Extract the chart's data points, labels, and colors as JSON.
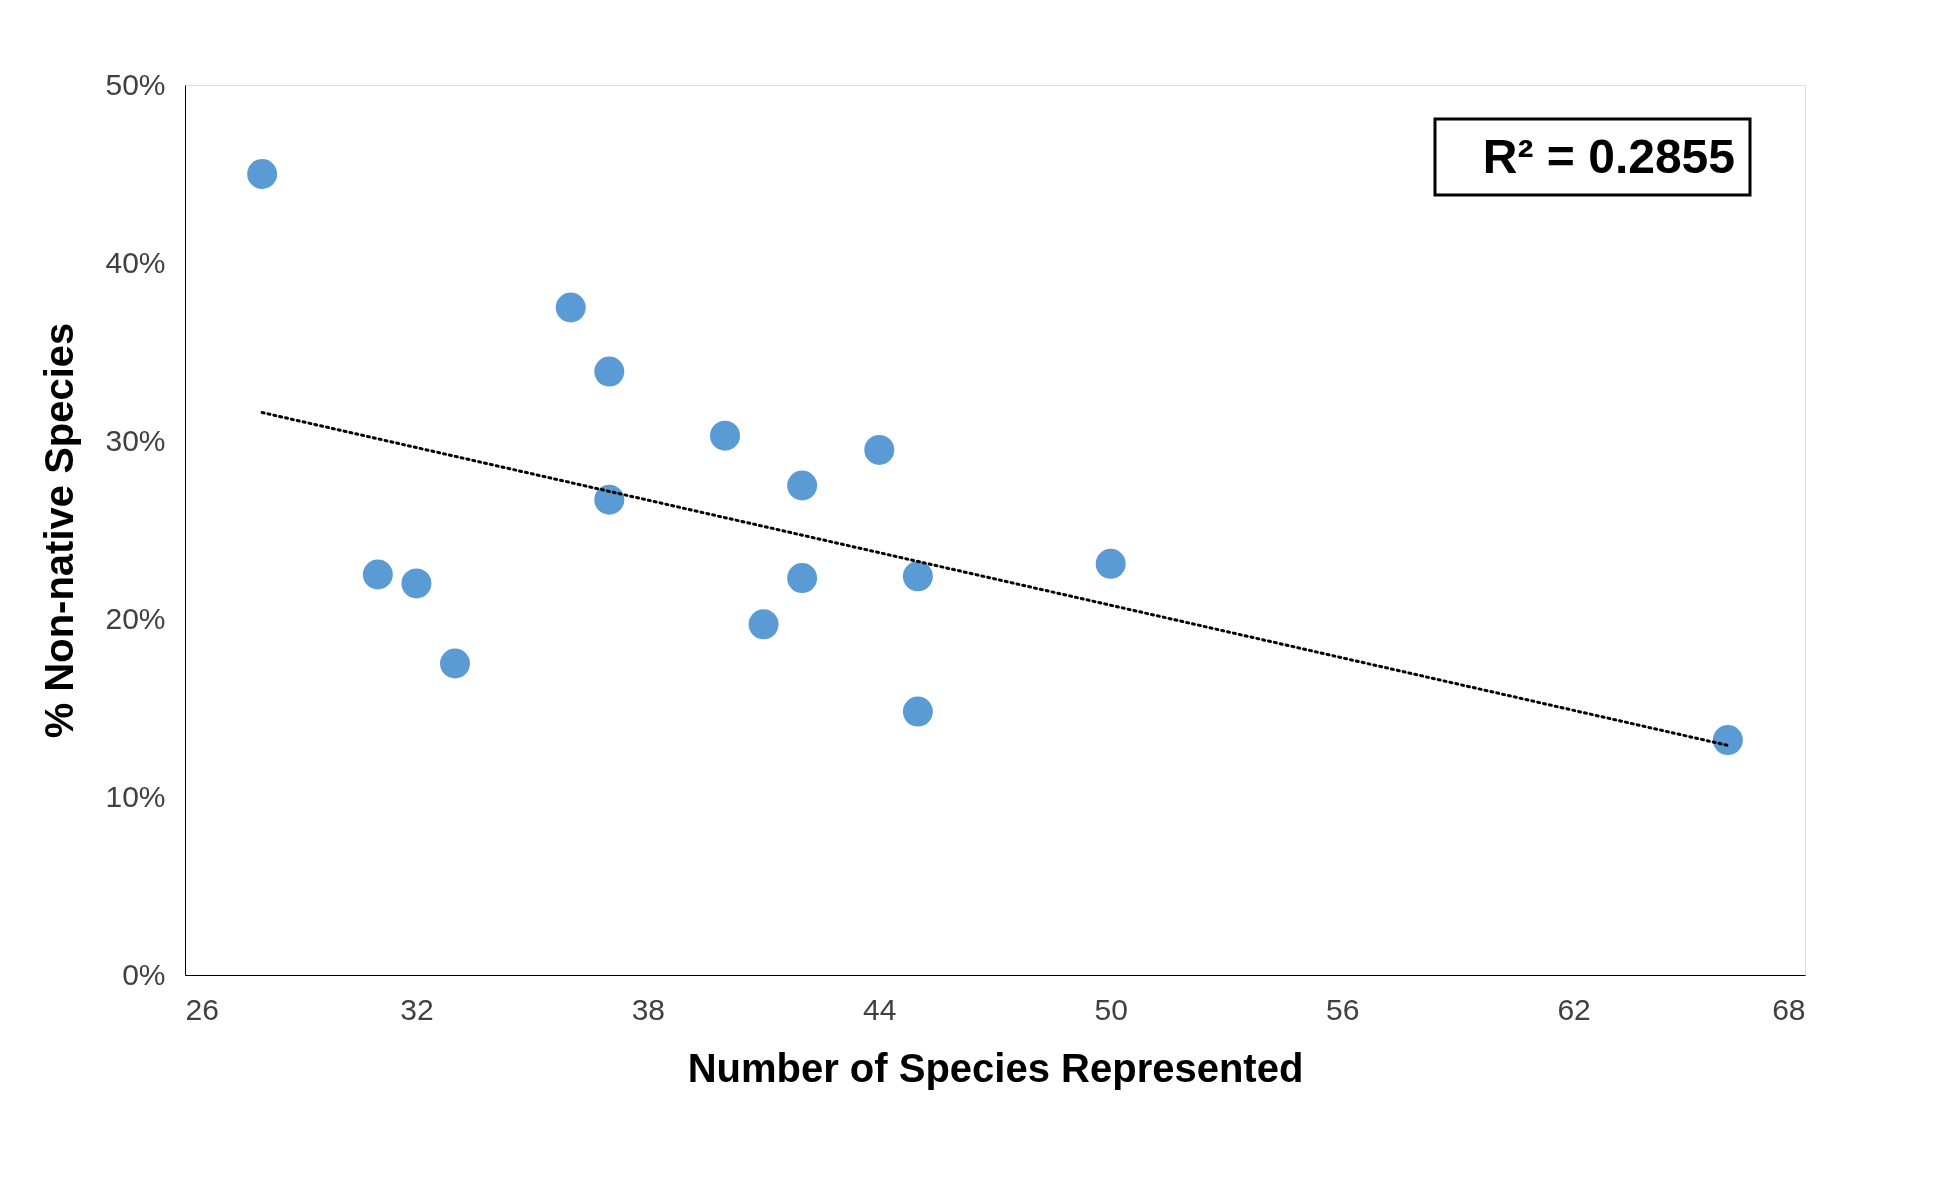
{
  "chart_data": {
    "type": "scatter",
    "xlabel": "Number of Species Represented",
    "ylabel": "% Non-native Species",
    "series": [
      {
        "type": "scatter",
        "color": "#5b9bd5",
        "marker": "circle",
        "x": [
          28,
          31,
          32,
          33,
          36,
          37,
          37,
          40,
          41,
          42,
          42,
          44,
          45,
          45,
          50,
          66
        ],
        "values": [
          45.0,
          22.5,
          22.0,
          17.5,
          37.5,
          33.9,
          26.7,
          30.3,
          19.7,
          27.5,
          22.3,
          29.5,
          22.4,
          14.8,
          23.1,
          13.2
        ]
      },
      {
        "type": "line",
        "color": "#000000",
        "line_style": "dotted",
        "x": [
          28,
          66
        ],
        "values": [
          31.6,
          12.9
        ]
      }
    ],
    "xlim": [
      26,
      68
    ],
    "xticks": [
      26,
      32,
      38,
      44,
      50,
      56,
      62,
      68
    ],
    "ylim": [
      0,
      50
    ],
    "yticks": [
      {
        "value": 0,
        "label": "0%"
      },
      {
        "value": 10,
        "label": "10%"
      },
      {
        "value": 20,
        "label": "20%"
      },
      {
        "value": 30,
        "label": "30%"
      },
      {
        "value": 40,
        "label": "40%"
      },
      {
        "value": 50,
        "label": "50%"
      }
    ],
    "annotations": [
      "R² = 0.2855"
    ],
    "grid": false
  }
}
